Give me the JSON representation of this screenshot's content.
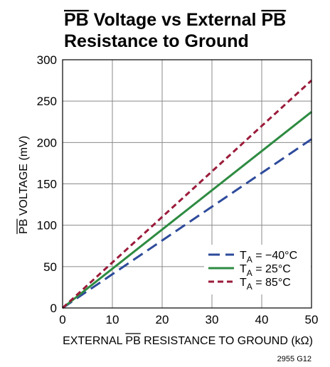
{
  "chart_data": {
    "type": "line",
    "title_lines": [
      {
        "overline": "PB",
        "text": " Voltage vs External "
      },
      {
        "overline": "PB",
        "text": ""
      },
      {
        "overline": "",
        "text": "Resistance to Ground"
      }
    ],
    "xlabel": {
      "pre": "EXTERNAL ",
      "overline": "PB",
      "post": " RESISTANCE TO GROUND (kΩ)"
    },
    "ylabel": {
      "overline": "PB",
      "post": " VOLTAGE (mV)"
    },
    "xlim": [
      0,
      50
    ],
    "ylim": [
      0,
      300
    ],
    "xticks": [
      0,
      10,
      20,
      30,
      40,
      50
    ],
    "yticks": [
      0,
      50,
      100,
      150,
      200,
      250,
      300
    ],
    "grid": true,
    "legend_position": "bottom-right",
    "series": [
      {
        "name": "T_A = −40°C",
        "name_main": "T",
        "name_sub": "A",
        "name_rest": " = −40°C",
        "color": "#2e4b9b",
        "dash": "long-dash",
        "x": [
          0,
          10,
          20,
          30,
          40,
          50
        ],
        "y": [
          0,
          40.8,
          81.6,
          122.4,
          163.2,
          204
        ]
      },
      {
        "name": "T_A = 25°C",
        "name_main": "T",
        "name_sub": "A",
        "name_rest": " = 25°C",
        "color": "#2e8b42",
        "dash": "solid",
        "x": [
          0,
          10,
          20,
          30,
          40,
          50
        ],
        "y": [
          0,
          47.4,
          94.8,
          142.2,
          189.6,
          237
        ]
      },
      {
        "name": "T_A = 85°C",
        "name_main": "T",
        "name_sub": "A",
        "name_rest": " = 85°C",
        "color": "#9b1b3a",
        "dash": "short-dash",
        "x": [
          0,
          10,
          20,
          30,
          40,
          50
        ],
        "y": [
          0,
          55,
          110,
          165,
          220,
          275
        ]
      }
    ],
    "figure_id": "2955 G12"
  }
}
